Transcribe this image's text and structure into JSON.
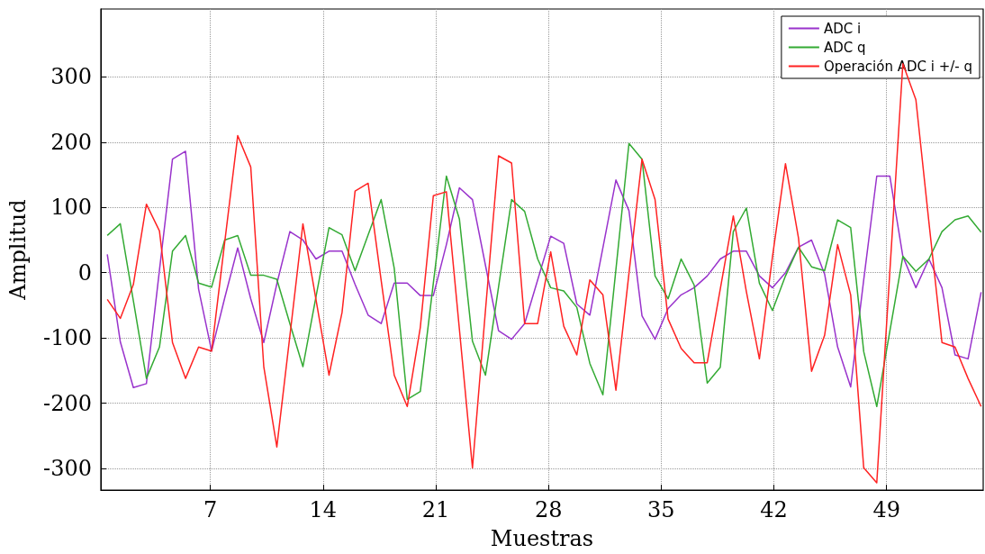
{
  "chart_data": {
    "type": "line",
    "xlabel": "Muestras",
    "ylabel": "Amplitud",
    "x": [
      0.6,
      1.41,
      2.22,
      3.03,
      3.84,
      4.65,
      5.46,
      6.27,
      7.08,
      7.89,
      8.7,
      9.51,
      10.32,
      11.13,
      11.94,
      12.75,
      13.56,
      14.37,
      15.18,
      15.99,
      16.8,
      17.61,
      18.42,
      19.23,
      20.04,
      20.85,
      21.66,
      22.47,
      23.28,
      24.09,
      24.9,
      25.71,
      26.52,
      27.33,
      28.14,
      28.95,
      29.76,
      30.57,
      31.38,
      32.19,
      33.0,
      33.81,
      34.62,
      35.43,
      36.24,
      37.05,
      37.86,
      38.67,
      39.48,
      40.29,
      41.1,
      41.91,
      42.72,
      43.53,
      44.34,
      45.15,
      45.96,
      46.77,
      47.58,
      48.39,
      49.2,
      50.01,
      50.82,
      51.63,
      52.44,
      53.25,
      54.06,
      54.87
    ],
    "series": [
      {
        "name": "ADC i",
        "color": "#9933cc",
        "values": [
          28,
          -106,
          -176,
          -170,
          4,
          174,
          186,
          -25,
          -120,
          -39,
          38,
          -40,
          -107,
          -17,
          63,
          50,
          21,
          33,
          33,
          -18,
          -65,
          -78,
          -16,
          -16,
          -35,
          -35,
          43,
          130,
          112,
          11,
          -89,
          -102,
          -78,
          -11,
          56,
          45,
          -48,
          -65,
          38,
          142,
          95,
          -66,
          -102,
          -55,
          -34,
          -23,
          -5,
          21,
          33,
          33,
          -5,
          -23,
          0,
          39,
          50,
          -2,
          -114,
          -175,
          -11,
          148,
          148,
          25,
          -23,
          21,
          -23,
          -126,
          -132,
          -30
        ]
      },
      {
        "name": "ADC q",
        "color": "#33aa33",
        "values": [
          57,
          75,
          -43,
          -162,
          -114,
          33,
          57,
          -16,
          -22,
          50,
          57,
          -4,
          -4,
          -10,
          -78,
          -144,
          -37,
          69,
          58,
          3,
          58,
          112,
          7,
          -194,
          -182,
          -16,
          148,
          82,
          -105,
          -157,
          -22,
          112,
          94,
          21,
          -23,
          -28,
          -53,
          -139,
          -187,
          5,
          198,
          174,
          -5,
          -40,
          21,
          -19,
          -169,
          -145,
          63,
          99,
          -16,
          -58,
          -5,
          39,
          9,
          3,
          81,
          69,
          -121,
          -205,
          -90,
          25,
          2,
          21,
          63,
          81,
          87,
          62
        ]
      },
      {
        "name": "Operación ADC i +/- q",
        "color": "#ff2222",
        "values": [
          -41,
          -70,
          -18,
          105,
          64,
          -107,
          -162,
          -114,
          -120,
          46,
          210,
          162,
          -144,
          -267,
          -97,
          75,
          -41,
          -157,
          -61,
          125,
          137,
          -12,
          -157,
          -205,
          -84,
          118,
          124,
          -87,
          -299,
          -57,
          179,
          168,
          -78,
          -78,
          32,
          -82,
          -126,
          -11,
          -34,
          -180,
          -1,
          174,
          112,
          -71,
          -116,
          -138,
          -138,
          -25,
          87,
          -29,
          -132,
          24,
          167,
          53,
          -151,
          -96,
          43,
          -34,
          -299,
          -322,
          1,
          320,
          265,
          77,
          -107,
          -114,
          -162,
          -205
        ]
      }
    ],
    "xlim": [
      0.2,
      55
    ],
    "xticks": [
      7,
      14,
      21,
      28,
      35,
      42,
      49
    ],
    "ylim": [
      -333,
      404
    ],
    "yticks": [
      -300,
      -200,
      -100,
      0,
      100,
      200,
      300
    ],
    "grid": true,
    "legend": "top right",
    "marker": "none",
    "line_style": "solid"
  }
}
